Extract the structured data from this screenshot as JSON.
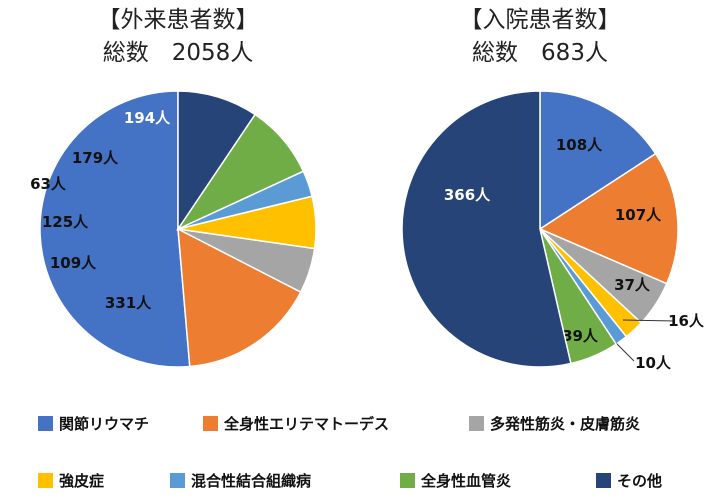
{
  "colors": {
    "関節リウマチ": "#4472C4",
    "全身性エリテマトーデス": "#ED7D31",
    "多発性筋炎・皮膚筋炎": "#A5A5A5",
    "強皮症": "#FFC000",
    "混合性結合組織病": "#5B9BD5",
    "全身性血管炎": "#70AD47",
    "その他": "#264478"
  },
  "chart_data": [
    {
      "type": "pie",
      "title": "【外来患者数】",
      "subtitle": "総数　2058人",
      "unit": "人",
      "slices": [
        {
          "name": "関節リウマチ",
          "value": 1057
        },
        {
          "name": "全身性エリテマトーデス",
          "value": 331
        },
        {
          "name": "多発性筋炎・皮膚筋炎",
          "value": 109
        },
        {
          "name": "強皮症",
          "value": 125
        },
        {
          "name": "混合性結合組織病",
          "value": 63
        },
        {
          "name": "全身性血管炎",
          "value": 179
        },
        {
          "name": "その他",
          "value": 194
        }
      ]
    },
    {
      "type": "pie",
      "title": "【入院患者数】",
      "subtitle": "総数　683人",
      "unit": "人",
      "slices": [
        {
          "name": "関節リウマチ",
          "value": 108
        },
        {
          "name": "全身性エリテマトーデス",
          "value": 107
        },
        {
          "name": "多発性筋炎・皮膚筋炎",
          "value": 37
        },
        {
          "name": "強皮症",
          "value": 16
        },
        {
          "name": "混合性結合組織病",
          "value": 10
        },
        {
          "name": "全身性血管炎",
          "value": 39
        },
        {
          "name": "その他",
          "value": 366
        }
      ]
    }
  ],
  "legend": {
    "placement": "bottom",
    "items": [
      "関節リウマチ",
      "全身性エリテマトーデス",
      "多発性筋炎・皮膚筋炎",
      "強皮症",
      "混合性結合組織病",
      "全身性血管炎",
      "その他"
    ]
  }
}
